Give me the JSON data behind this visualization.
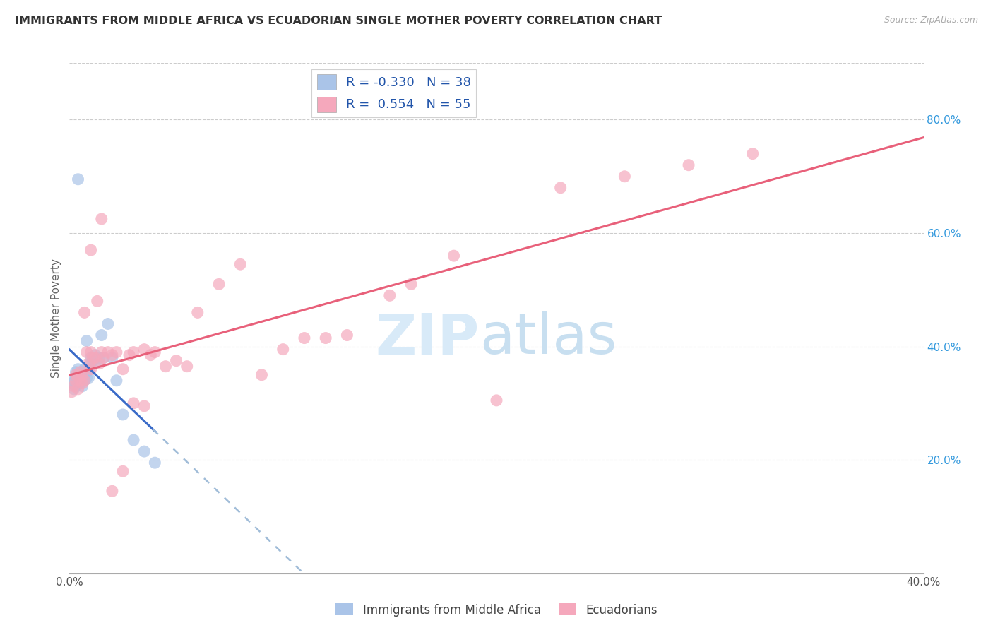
{
  "title": "IMMIGRANTS FROM MIDDLE AFRICA VS ECUADORIAN SINGLE MOTHER POVERTY CORRELATION CHART",
  "source": "Source: ZipAtlas.com",
  "ylabel": "Single Mother Poverty",
  "xlim": [
    0.0,
    0.4
  ],
  "ylim": [
    0.0,
    0.9
  ],
  "y_ticks_right": [
    0.2,
    0.4,
    0.6,
    0.8
  ],
  "y_tick_labels_right": [
    "20.0%",
    "40.0%",
    "60.0%",
    "80.0%"
  ],
  "legend_blue_r": "-0.330",
  "legend_blue_n": "38",
  "legend_pink_r": "0.554",
  "legend_pink_n": "55",
  "blue_color": "#aac4e8",
  "pink_color": "#f5a8bc",
  "blue_line_color": "#3a6bc8",
  "pink_line_color": "#e8607a",
  "dash_line_color": "#a0bcd8",
  "blue_points_x": [
    0.001,
    0.002,
    0.002,
    0.003,
    0.003,
    0.003,
    0.004,
    0.004,
    0.005,
    0.005,
    0.005,
    0.006,
    0.006,
    0.006,
    0.007,
    0.007,
    0.007,
    0.008,
    0.008,
    0.009,
    0.009,
    0.01,
    0.01,
    0.011,
    0.012,
    0.013,
    0.014,
    0.015,
    0.016,
    0.018,
    0.02,
    0.022,
    0.025,
    0.03,
    0.035,
    0.04,
    0.004,
    0.008
  ],
  "blue_points_y": [
    0.335,
    0.325,
    0.34,
    0.33,
    0.345,
    0.355,
    0.35,
    0.36,
    0.335,
    0.34,
    0.35,
    0.33,
    0.345,
    0.355,
    0.34,
    0.35,
    0.36,
    0.345,
    0.355,
    0.345,
    0.36,
    0.38,
    0.37,
    0.375,
    0.385,
    0.375,
    0.38,
    0.42,
    0.38,
    0.44,
    0.38,
    0.34,
    0.28,
    0.235,
    0.215,
    0.195,
    0.695,
    0.41
  ],
  "pink_points_x": [
    0.001,
    0.002,
    0.003,
    0.003,
    0.004,
    0.005,
    0.005,
    0.006,
    0.006,
    0.007,
    0.007,
    0.008,
    0.009,
    0.01,
    0.01,
    0.011,
    0.012,
    0.013,
    0.014,
    0.015,
    0.016,
    0.018,
    0.02,
    0.022,
    0.025,
    0.028,
    0.03,
    0.035,
    0.038,
    0.04,
    0.045,
    0.05,
    0.055,
    0.06,
    0.07,
    0.08,
    0.09,
    0.1,
    0.11,
    0.12,
    0.13,
    0.15,
    0.16,
    0.18,
    0.2,
    0.23,
    0.26,
    0.29,
    0.32,
    0.01,
    0.015,
    0.02,
    0.025,
    0.03,
    0.035
  ],
  "pink_points_y": [
    0.32,
    0.33,
    0.34,
    0.35,
    0.325,
    0.34,
    0.355,
    0.335,
    0.35,
    0.34,
    0.46,
    0.39,
    0.37,
    0.36,
    0.39,
    0.38,
    0.38,
    0.48,
    0.37,
    0.39,
    0.38,
    0.39,
    0.385,
    0.39,
    0.36,
    0.385,
    0.39,
    0.395,
    0.385,
    0.39,
    0.365,
    0.375,
    0.365,
    0.46,
    0.51,
    0.545,
    0.35,
    0.395,
    0.415,
    0.415,
    0.42,
    0.49,
    0.51,
    0.56,
    0.305,
    0.68,
    0.7,
    0.72,
    0.74,
    0.57,
    0.625,
    0.145,
    0.18,
    0.3,
    0.295
  ]
}
